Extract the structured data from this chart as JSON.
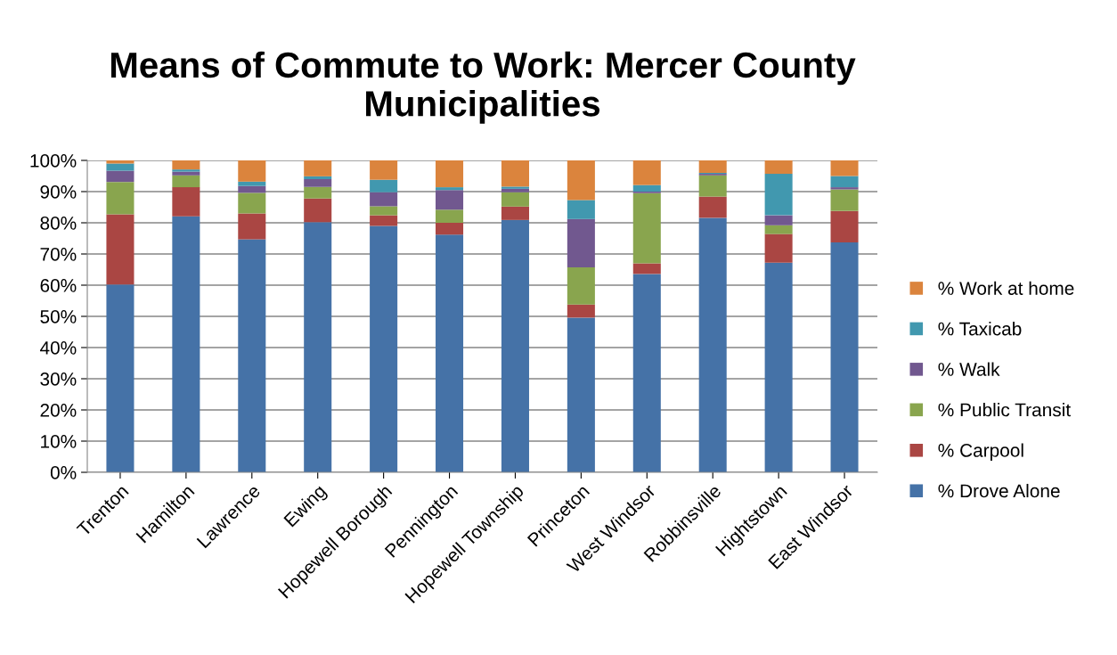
{
  "chart_data": {
    "type": "bar",
    "stacked": true,
    "title": "Means of Commute to Work: Mercer County Municipalities",
    "categories": [
      "Trenton",
      "Hamilton",
      "Lawrence",
      "Ewing",
      "Hopewell Borough",
      "Pennington",
      "Hopewell Township",
      "Princeton",
      "West Windsor",
      "Robbinsville",
      "Hightstown",
      "East Windsor"
    ],
    "series": [
      {
        "name": "% Drove Alone",
        "color": "#4572a7",
        "values": [
          60.2,
          82.1,
          74.7,
          80.2,
          79.0,
          76.2,
          80.9,
          49.6,
          63.6,
          81.6,
          67.2,
          73.7
        ]
      },
      {
        "name": "% Carpool",
        "color": "#aa4643",
        "values": [
          22.5,
          9.3,
          8.3,
          7.6,
          3.4,
          3.8,
          4.3,
          4.2,
          3.4,
          6.8,
          9.2,
          10.1
        ]
      },
      {
        "name": "% Public Transit",
        "color": "#89a54e",
        "values": [
          10.4,
          3.8,
          6.6,
          3.7,
          2.9,
          4.2,
          4.6,
          11.9,
          22.5,
          6.8,
          2.8,
          6.9
        ]
      },
      {
        "name": "% Walk",
        "color": "#71588f",
        "values": [
          3.6,
          1.2,
          2.2,
          2.5,
          4.5,
          6.3,
          1.1,
          15.5,
          0.5,
          0.5,
          3.2,
          0.7
        ]
      },
      {
        "name": "% Taxicab",
        "color": "#4198af",
        "values": [
          2.3,
          0.7,
          1.4,
          0.9,
          4.0,
          0.9,
          0.7,
          6.1,
          2.1,
          0.3,
          13.3,
          3.6
        ]
      },
      {
        "name": "% Work at home",
        "color": "#db843d",
        "values": [
          1.0,
          2.9,
          6.8,
          5.1,
          6.2,
          8.6,
          8.4,
          12.7,
          7.9,
          4.0,
          4.3,
          5.0
        ]
      }
    ],
    "ylim": [
      0,
      100
    ],
    "yticks": [
      {
        "value": 0,
        "label": "0%"
      },
      {
        "value": 10,
        "label": "10%"
      },
      {
        "value": 20,
        "label": "20%"
      },
      {
        "value": 30,
        "label": "30%"
      },
      {
        "value": 40,
        "label": "40%"
      },
      {
        "value": 50,
        "label": "50%"
      },
      {
        "value": 60,
        "label": "60%"
      },
      {
        "value": 70,
        "label": "70%"
      },
      {
        "value": 80,
        "label": "80%"
      },
      {
        "value": 90,
        "label": "90%"
      },
      {
        "value": 100,
        "label": "100%"
      }
    ],
    "grid": "y",
    "legend": "right"
  }
}
